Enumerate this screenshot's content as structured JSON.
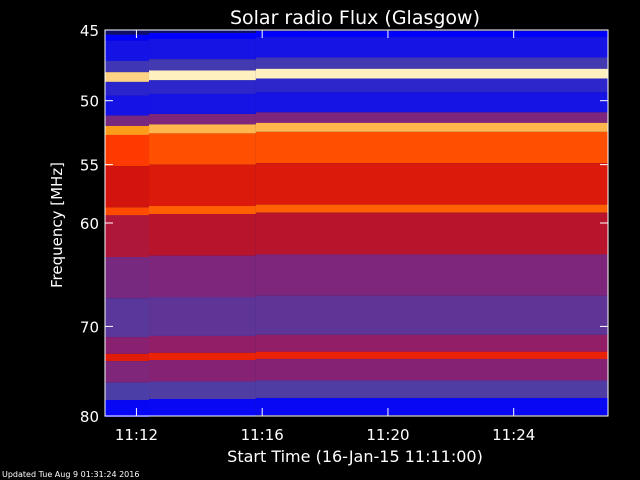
{
  "chart_data": {
    "type": "heatmap",
    "title": "Solar radio Flux (Glasgow)",
    "xlabel": "Start Time (16-Jan-15 11:11:00)",
    "ylabel": "Frequency [MHz]",
    "xlim": [
      "11:11:00",
      "11:27:00"
    ],
    "ylim": [
      80,
      45
    ],
    "y_scale": "log",
    "x_ticks": [
      "11:12",
      "11:16",
      "11:20",
      "11:24"
    ],
    "x_tick_minutes": [
      12,
      16,
      20,
      24
    ],
    "y_ticks": [
      45,
      50,
      55,
      60,
      70,
      80
    ],
    "colormap": [
      "#0000ff",
      "#4a3fa8",
      "#8a2070",
      "#cc1010",
      "#ff3000",
      "#ff9000",
      "#fff0c0"
    ],
    "freq_bands": [
      {
        "f1": 45.2,
        "f2": 45.6,
        "level": 0.0
      },
      {
        "f1": 45.6,
        "f2": 47.0,
        "level": 0.05
      },
      {
        "f1": 47.0,
        "f2": 47.8,
        "level": 0.15
      },
      {
        "f1": 47.8,
        "f2": 48.5,
        "level": 1.0
      },
      {
        "f1": 48.5,
        "f2": 49.5,
        "level": 0.1
      },
      {
        "f1": 49.5,
        "f2": 51.0,
        "level": 0.05
      },
      {
        "f1": 51.0,
        "f2": 51.8,
        "level": 0.3
      },
      {
        "f1": 51.8,
        "f2": 52.5,
        "level": 0.9
      },
      {
        "f1": 52.5,
        "f2": 55.0,
        "level": 0.72
      },
      {
        "f1": 55.0,
        "f2": 58.5,
        "level": 0.55
      },
      {
        "f1": 58.5,
        "f2": 59.2,
        "level": 0.75
      },
      {
        "f1": 59.2,
        "f2": 63.0,
        "level": 0.45
      },
      {
        "f1": 63.0,
        "f2": 67.0,
        "level": 0.3
      },
      {
        "f1": 67.0,
        "f2": 71.0,
        "level": 0.22
      },
      {
        "f1": 71.0,
        "f2": 72.8,
        "level": 0.35
      },
      {
        "f1": 72.8,
        "f2": 73.6,
        "level": 0.6
      },
      {
        "f1": 73.6,
        "f2": 76.0,
        "level": 0.32
      },
      {
        "f1": 76.0,
        "f2": 78.0,
        "level": 0.18
      },
      {
        "f1": 78.0,
        "f2": 80.0,
        "level": 0.02
      }
    ],
    "time_segments_minutes": [
      11.0,
      12.4,
      15.8,
      27.0
    ]
  },
  "footer": {
    "updated": "Updated Tue Aug  9 01:31:24 2016"
  }
}
